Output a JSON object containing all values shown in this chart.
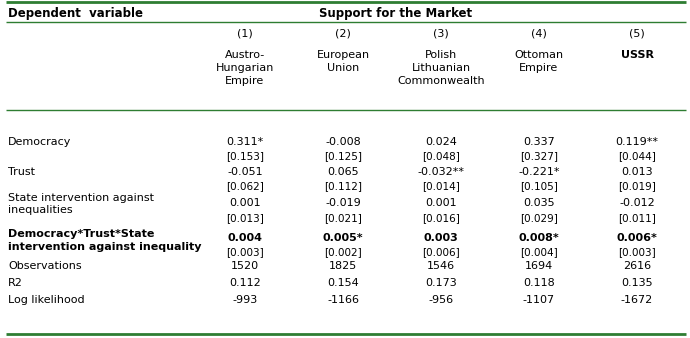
{
  "title_left": "Dependent  variable",
  "title_right": "Support for the Market",
  "col_headers": [
    "(1)",
    "(2)",
    "(3)",
    "(4)",
    "(5)"
  ],
  "col_subheaders": [
    [
      "Austro-",
      "Hungarian",
      "Empire"
    ],
    [
      "European",
      "Union"
    ],
    [
      "Polish",
      "Lithuanian",
      "Commonwealth"
    ],
    [
      "Ottoman",
      "Empire"
    ],
    [
      "USSR"
    ]
  ],
  "col_subheader_bold": [
    false,
    false,
    false,
    false,
    true
  ],
  "rows": [
    {
      "label": "Democracy",
      "label_bold": false,
      "label_lines": [
        "Democracy"
      ],
      "values": [
        "0.311*",
        "-0.008",
        "0.024",
        "0.337",
        "0.119**"
      ],
      "values_bold": [
        false,
        false,
        false,
        false,
        false
      ],
      "se": [
        "[0.153]",
        "[0.125]",
        "[0.048]",
        "[0.327]",
        "[0.044]"
      ]
    },
    {
      "label": "Trust",
      "label_bold": false,
      "label_lines": [
        "Trust"
      ],
      "values": [
        "-0.051",
        "0.065",
        "-0.032**",
        "-0.221*",
        "0.013"
      ],
      "values_bold": [
        false,
        false,
        false,
        false,
        false
      ],
      "se": [
        "[0.062]",
        "[0.112]",
        "[0.014]",
        "[0.105]",
        "[0.019]"
      ]
    },
    {
      "label": "State intervention against inequalities",
      "label_bold": false,
      "label_lines": [
        "State intervention against",
        "inequalities"
      ],
      "values": [
        "0.001",
        "-0.019",
        "0.001",
        "0.035",
        "-0.012"
      ],
      "values_bold": [
        false,
        false,
        false,
        false,
        false
      ],
      "se": [
        "[0.013]",
        "[0.021]",
        "[0.016]",
        "[0.029]",
        "[0.011]"
      ]
    },
    {
      "label": "Democracy*Trust*State intervention against inequality",
      "label_bold": true,
      "label_lines": [
        "Democracy*Trust*State",
        "intervention against inequality"
      ],
      "values": [
        "0.004",
        "0.005*",
        "0.003",
        "0.008*",
        "0.006*"
      ],
      "values_bold": [
        true,
        true,
        true,
        true,
        true
      ],
      "se": [
        "[0.003]",
        "[0.002]",
        "[0.006]",
        "[0.004]",
        "[0.003]"
      ]
    },
    {
      "label": "Observations",
      "label_bold": false,
      "label_lines": [
        "Observations"
      ],
      "values": [
        "1520",
        "1825",
        "1546",
        "1694",
        "2616"
      ],
      "values_bold": [
        false,
        false,
        false,
        false,
        false
      ],
      "se": null
    },
    {
      "label": "R2",
      "label_bold": false,
      "label_lines": [
        "R2"
      ],
      "values": [
        "0.112",
        "0.154",
        "0.173",
        "0.118",
        "0.135"
      ],
      "values_bold": [
        false,
        false,
        false,
        false,
        false
      ],
      "se": null
    },
    {
      "label": "Log likelihood",
      "label_bold": false,
      "label_lines": [
        "Log likelihood"
      ],
      "values": [
        "-993",
        "-1166",
        "-956",
        "-1107",
        "-1672"
      ],
      "values_bold": [
        false,
        false,
        false,
        false,
        false
      ],
      "se": null
    }
  ],
  "border_color": "#2e7d32",
  "fig_width": 6.9,
  "fig_height": 3.38,
  "dpi": 100
}
